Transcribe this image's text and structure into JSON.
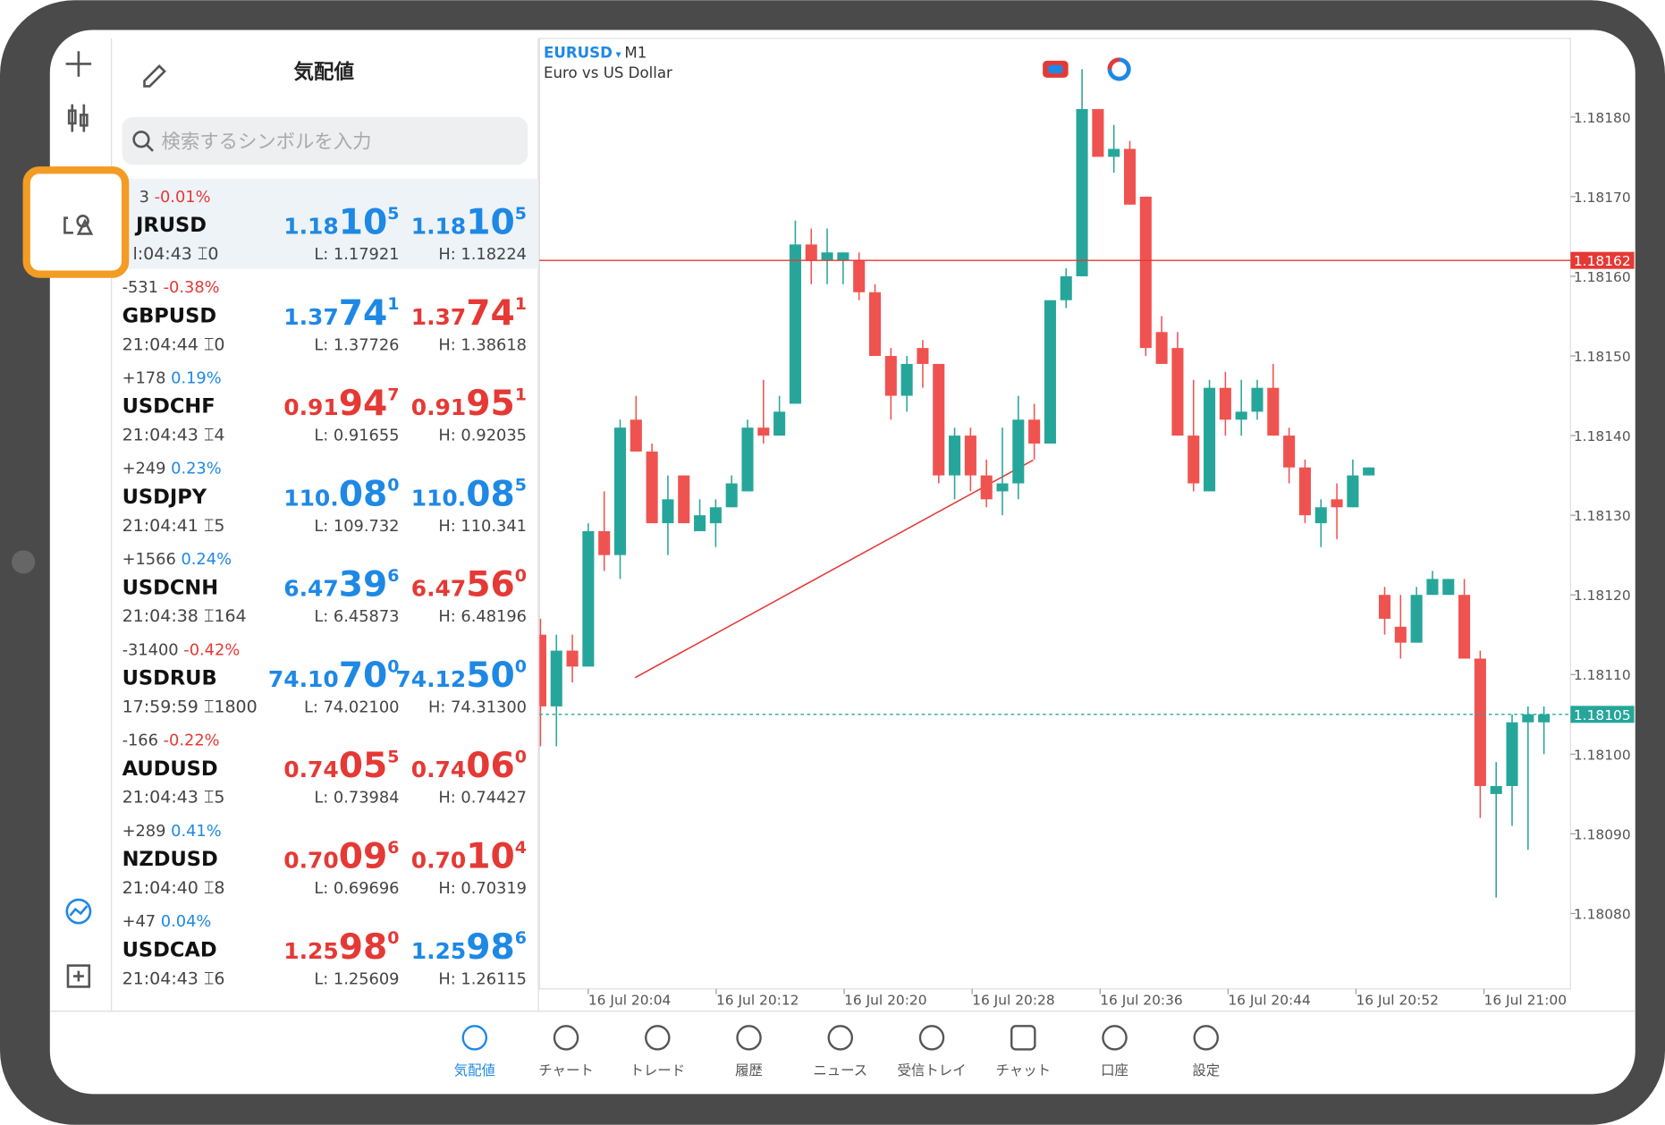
{
  "watchlist": {
    "title": "気配値",
    "search_placeholder": "検索するシンボルを入力",
    "rows": [
      {
        "change": "3",
        "percent": "-0.01%",
        "dir": "down",
        "symbol": "JRUSD",
        "time": "l:04:43",
        "spread": "0",
        "bid": [
          "1.18",
          "10",
          "5"
        ],
        "bid_color": "#1e88e5",
        "ask": [
          "1.18",
          "10",
          "5"
        ],
        "ask_color": "#1e88e5",
        "low": "L: 1.17921",
        "high": "H: 1.18224"
      },
      {
        "change": "-531",
        "percent": "-0.38%",
        "dir": "down",
        "symbol": "GBPUSD",
        "time": "21:04:44",
        "spread": "0",
        "bid": [
          "1.37",
          "74",
          "1"
        ],
        "bid_color": "#1e88e5",
        "ask": [
          "1.37",
          "74",
          "1"
        ],
        "ask_color": "#e53935",
        "low": "L: 1.37726",
        "high": "H: 1.38618"
      },
      {
        "change": "+178",
        "percent": "0.19%",
        "dir": "up",
        "symbol": "USDCHF",
        "time": "21:04:43",
        "spread": "4",
        "bid": [
          "0.91",
          "94",
          "7"
        ],
        "bid_color": "#e53935",
        "ask": [
          "0.91",
          "95",
          "1"
        ],
        "ask_color": "#e53935",
        "low": "L: 0.91655",
        "high": "H: 0.92035"
      },
      {
        "change": "+249",
        "percent": "0.23%",
        "dir": "up",
        "symbol": "USDJPY",
        "time": "21:04:41",
        "spread": "5",
        "bid": [
          "110.",
          "08",
          "0"
        ],
        "bid_color": "#1e88e5",
        "ask": [
          "110.",
          "08",
          "5"
        ],
        "ask_color": "#1e88e5",
        "low": "L: 109.732",
        "high": "H: 110.341"
      },
      {
        "change": "+1566",
        "percent": "0.24%",
        "dir": "up",
        "symbol": "USDCNH",
        "time": "21:04:38",
        "spread": "164",
        "bid": [
          "6.47",
          "39",
          "6"
        ],
        "bid_color": "#1e88e5",
        "ask": [
          "6.47",
          "56",
          "0"
        ],
        "ask_color": "#e53935",
        "low": "L: 6.45873",
        "high": "H: 6.48196"
      },
      {
        "change": "-31400",
        "percent": "-0.42%",
        "dir": "down",
        "symbol": "USDRUB",
        "time": "17:59:59",
        "spread": "1800",
        "bid": [
          "74.10",
          "70",
          "0"
        ],
        "bid_color": "#1e88e5",
        "ask": [
          "74.12",
          "50",
          "0"
        ],
        "ask_color": "#1e88e5",
        "low": "L: 74.02100",
        "high": "H: 74.31300"
      },
      {
        "change": "-166",
        "percent": "-0.22%",
        "dir": "down",
        "symbol": "AUDUSD",
        "time": "21:04:43",
        "spread": "5",
        "bid": [
          "0.74",
          "05",
          "5"
        ],
        "bid_color": "#e53935",
        "ask": [
          "0.74",
          "06",
          "0"
        ],
        "ask_color": "#e53935",
        "low": "L: 0.73984",
        "high": "H: 0.74427"
      },
      {
        "change": "+289",
        "percent": "0.41%",
        "dir": "up",
        "symbol": "NZDUSD",
        "time": "21:04:40",
        "spread": "8",
        "bid": [
          "0.70",
          "09",
          "6"
        ],
        "bid_color": "#e53935",
        "ask": [
          "0.70",
          "10",
          "4"
        ],
        "ask_color": "#e53935",
        "low": "L: 0.69696",
        "high": "H: 0.70319"
      },
      {
        "change": "+47",
        "percent": "0.04%",
        "dir": "up",
        "symbol": "USDCAD",
        "time": "21:04:43",
        "spread": "6",
        "bid": [
          "1.25",
          "98",
          "0"
        ],
        "bid_color": "#e53935",
        "ask": [
          "1.25",
          "98",
          "6"
        ],
        "ask_color": "#1e88e5",
        "low": "L: 1.25609",
        "high": "H: 1.26115"
      }
    ]
  },
  "chart": {
    "type": "candlestick",
    "symbol": "EURUSD",
    "timeframe": "M1",
    "description": "Euro vs US Dollar",
    "up_color": "#26a69a",
    "down_color": "#ef5350",
    "ylim": [
      1.1807,
      1.1819
    ],
    "yticks": [
      {
        "value": 1.1818,
        "label": "1.18180"
      },
      {
        "value": 1.1817,
        "label": "1.18170"
      },
      {
        "value": 1.1816,
        "label": "1.18160"
      },
      {
        "value": 1.1815,
        "label": "1.18150"
      },
      {
        "value": 1.1814,
        "label": "1.18140"
      },
      {
        "value": 1.1813,
        "label": "1.18130"
      },
      {
        "value": 1.1812,
        "label": "1.18120"
      },
      {
        "value": 1.1811,
        "label": "1.18110"
      },
      {
        "value": 1.181,
        "label": "1.18100"
      },
      {
        "value": 1.1809,
        "label": "1.18090"
      },
      {
        "value": 1.1808,
        "label": "1.18080"
      }
    ],
    "xticks": [
      "16 Jul 20:04",
      "16 Jul 20:12",
      "16 Jul 20:20",
      "16 Jul 20:28",
      "16 Jul 20:36",
      "16 Jul 20:44",
      "16 Jul 20:52",
      "16 Jul 21:00"
    ],
    "price_lines": [
      {
        "value": 1.18162,
        "label": "1.18162",
        "color": "#e53935"
      },
      {
        "value": 1.18105,
        "label": "1.18105",
        "color": "#26a69a"
      }
    ],
    "candles": [
      [
        1.18115,
        1.18117,
        1.18101,
        1.18106
      ],
      [
        1.18106,
        1.18115,
        1.18101,
        1.18113
      ],
      [
        1.18113,
        1.18115,
        1.18109,
        1.18111
      ],
      [
        1.18111,
        1.18129,
        1.18111,
        1.18128
      ],
      [
        1.18128,
        1.18133,
        1.18123,
        1.18125
      ],
      [
        1.18125,
        1.18142,
        1.18122,
        1.18141
      ],
      [
        1.18142,
        1.18145,
        1.18138,
        1.18138
      ],
      [
        1.18138,
        1.18139,
        1.18129,
        1.18129
      ],
      [
        1.18129,
        1.18135,
        1.18125,
        1.18132
      ],
      [
        1.18135,
        1.18135,
        1.18129,
        1.18129
      ],
      [
        1.18128,
        1.18132,
        1.18128,
        1.1813
      ],
      [
        1.18129,
        1.18132,
        1.18126,
        1.18131
      ],
      [
        1.18131,
        1.18135,
        1.18131,
        1.18134
      ],
      [
        1.18133,
        1.18142,
        1.18133,
        1.18141
      ],
      [
        1.18141,
        1.18147,
        1.18139,
        1.1814
      ],
      [
        1.1814,
        1.18145,
        1.1814,
        1.18143
      ],
      [
        1.18144,
        1.18167,
        1.18144,
        1.18164
      ],
      [
        1.18164,
        1.18166,
        1.18159,
        1.18162
      ],
      [
        1.18162,
        1.18166,
        1.18159,
        1.18163
      ],
      [
        1.18162,
        1.18163,
        1.18159,
        1.18163
      ],
      [
        1.18162,
        1.18163,
        1.18157,
        1.18158
      ],
      [
        1.18158,
        1.18159,
        1.1815,
        1.1815
      ],
      [
        1.1815,
        1.18151,
        1.18142,
        1.18145
      ],
      [
        1.18145,
        1.1815,
        1.18143,
        1.18149
      ],
      [
        1.18151,
        1.18152,
        1.18146,
        1.18149
      ],
      [
        1.18149,
        1.18149,
        1.18134,
        1.18135
      ],
      [
        1.18135,
        1.18141,
        1.18132,
        1.1814
      ],
      [
        1.1814,
        1.18141,
        1.18133,
        1.18135
      ],
      [
        1.18135,
        1.18137,
        1.18131,
        1.18132
      ],
      [
        1.18133,
        1.18141,
        1.1813,
        1.18134
      ],
      [
        1.18134,
        1.18145,
        1.18132,
        1.18142
      ],
      [
        1.18142,
        1.18144,
        1.18137,
        1.18139
      ],
      [
        1.18139,
        1.18157,
        1.18139,
        1.18157
      ],
      [
        1.18157,
        1.18161,
        1.18156,
        1.1816
      ],
      [
        1.1816,
        1.18186,
        1.1816,
        1.18181
      ],
      [
        1.18181,
        1.18181,
        1.18175,
        1.18175
      ],
      [
        1.18175,
        1.18179,
        1.18173,
        1.18176
      ],
      [
        1.18176,
        1.18177,
        1.18169,
        1.18169
      ],
      [
        1.1817,
        1.1817,
        1.1815,
        1.18151
      ],
      [
        1.18153,
        1.18155,
        1.18149,
        1.18149
      ],
      [
        1.18151,
        1.18153,
        1.1814,
        1.1814
      ],
      [
        1.1814,
        1.18147,
        1.18133,
        1.18134
      ],
      [
        1.18133,
        1.18147,
        1.18133,
        1.18146
      ],
      [
        1.18146,
        1.18148,
        1.1814,
        1.18142
      ],
      [
        1.18142,
        1.18147,
        1.1814,
        1.18143
      ],
      [
        1.18143,
        1.18147,
        1.18142,
        1.18146
      ],
      [
        1.18146,
        1.18149,
        1.1814,
        1.1814
      ],
      [
        1.1814,
        1.18141,
        1.18134,
        1.18136
      ],
      [
        1.18136,
        1.18137,
        1.18129,
        1.1813
      ],
      [
        1.18129,
        1.18132,
        1.18126,
        1.18131
      ],
      [
        1.18132,
        1.18134,
        1.18127,
        1.18131
      ],
      [
        1.18131,
        1.18137,
        1.18131,
        1.18135
      ],
      [
        1.18135,
        1.18136,
        1.18135,
        1.18136
      ],
      [
        1.1812,
        1.18121,
        1.18115,
        1.18117
      ],
      [
        1.18116,
        1.1812,
        1.18112,
        1.18114
      ],
      [
        1.18114,
        1.18121,
        1.18114,
        1.1812
      ],
      [
        1.1812,
        1.18123,
        1.1812,
        1.18122
      ],
      [
        1.1812,
        1.18122,
        1.1812,
        1.18122
      ],
      [
        1.1812,
        1.18122,
        1.18112,
        1.18112
      ],
      [
        1.18112,
        1.18113,
        1.18092,
        1.18096
      ],
      [
        1.18095,
        1.18099,
        1.18082,
        1.18096
      ],
      [
        1.18096,
        1.18105,
        1.18091,
        1.18104
      ],
      [
        1.18104,
        1.18106,
        1.18088,
        1.18105
      ],
      [
        1.18104,
        1.18106,
        1.181,
        1.18105
      ]
    ]
  },
  "tabs": [
    "気配値",
    "チャート",
    "トレード",
    "履歴",
    "ニュース",
    "受信トレイ",
    "チャット",
    "口座",
    "設定"
  ]
}
